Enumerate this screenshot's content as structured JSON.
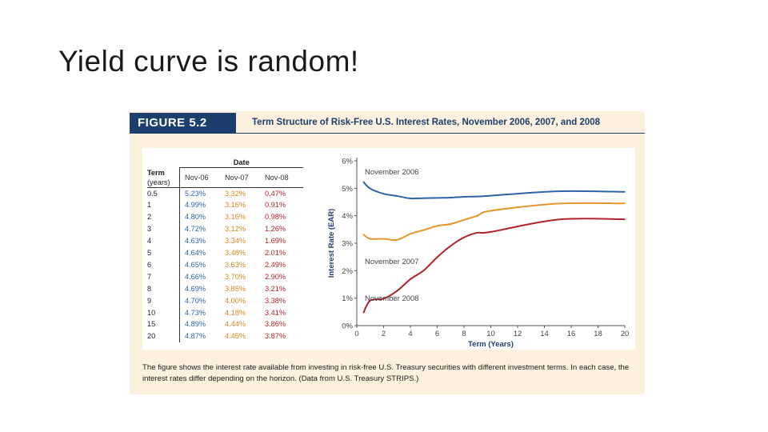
{
  "slide": {
    "title": "Yield curve is random!"
  },
  "figure": {
    "label": "FIGURE 5.2",
    "title": "Term Structure of Risk-Free U.S. Interest Rates, November 2006, 2007, and 2008",
    "caption": "The figure shows the interest rate available from investing in risk-free U.S. Treasury securities with different investment terms. In each case, the interest rates differ depending on the horizon. (Data from U.S. Treasury STRIPS.)"
  },
  "table": {
    "term_header": "Term",
    "term_sub": "(years)",
    "date_header": "Date",
    "columns": [
      "Nov-06",
      "Nov-07",
      "Nov-08"
    ],
    "rows": [
      {
        "term": "0.5",
        "v": [
          "5.23%",
          "3.32%",
          "0.47%"
        ]
      },
      {
        "term": "1",
        "v": [
          "4.99%",
          "3.16%",
          "0.91%"
        ]
      },
      {
        "term": "2",
        "v": [
          "4.80%",
          "3.16%",
          "0.98%"
        ]
      },
      {
        "term": "3",
        "v": [
          "4.72%",
          "3.12%",
          "1.26%"
        ]
      },
      {
        "term": "4",
        "v": [
          "4.63%",
          "3.34%",
          "1.69%"
        ]
      },
      {
        "term": "5",
        "v": [
          "4.64%",
          "3.48%",
          "2.01%"
        ]
      },
      {
        "term": "6",
        "v": [
          "4.65%",
          "3.63%",
          "2.49%"
        ]
      },
      {
        "term": "7",
        "v": [
          "4.66%",
          "3.70%",
          "2.90%"
        ]
      },
      {
        "term": "8",
        "v": [
          "4.69%",
          "3.85%",
          "3.21%"
        ]
      },
      {
        "term": "9",
        "v": [
          "4.70%",
          "4.00%",
          "3.38%"
        ]
      },
      {
        "term": "10",
        "v": [
          "4.73%",
          "4.18%",
          "3.41%"
        ]
      },
      {
        "term": "15",
        "v": [
          "4.89%",
          "4.44%",
          "3.86%"
        ]
      },
      {
        "term": "20",
        "v": [
          "4.87%",
          "4.45%",
          "3.87%"
        ]
      }
    ]
  },
  "chart_data": {
    "type": "line",
    "xlabel": "Term (Years)",
    "ylabel": "Interest Rate (EAR)",
    "xlim": [
      0,
      20
    ],
    "ylim": [
      0,
      6
    ],
    "xticks": [
      "0",
      "2",
      "4",
      "6",
      "8",
      "10",
      "12",
      "14",
      "16",
      "18",
      "20"
    ],
    "yticks": [
      "0%",
      "1%",
      "2%",
      "3%",
      "4%",
      "5%",
      "6%"
    ],
    "grid": false,
    "series": [
      {
        "name": "November 2006",
        "color": "#2d64a8",
        "x": [
          0.5,
          1,
          2,
          3,
          4,
          5,
          6,
          7,
          8,
          9,
          10,
          15,
          20
        ],
        "y": [
          5.23,
          4.99,
          4.8,
          4.72,
          4.63,
          4.64,
          4.65,
          4.66,
          4.69,
          4.7,
          4.73,
          4.89,
          4.87
        ]
      },
      {
        "name": "November 2007",
        "color": "#e6952a",
        "x": [
          0.5,
          1,
          2,
          3,
          4,
          5,
          6,
          7,
          8,
          9,
          10,
          15,
          20
        ],
        "y": [
          3.32,
          3.16,
          3.16,
          3.12,
          3.34,
          3.48,
          3.63,
          3.7,
          3.85,
          4.0,
          4.18,
          4.44,
          4.45
        ]
      },
      {
        "name": "November 2008",
        "color": "#b0222c",
        "x": [
          0.5,
          1,
          2,
          3,
          4,
          5,
          6,
          7,
          8,
          9,
          10,
          15,
          20
        ],
        "y": [
          0.47,
          0.91,
          0.98,
          1.26,
          1.69,
          2.01,
          2.49,
          2.9,
          3.21,
          3.38,
          3.41,
          3.86,
          3.87
        ]
      }
    ]
  }
}
